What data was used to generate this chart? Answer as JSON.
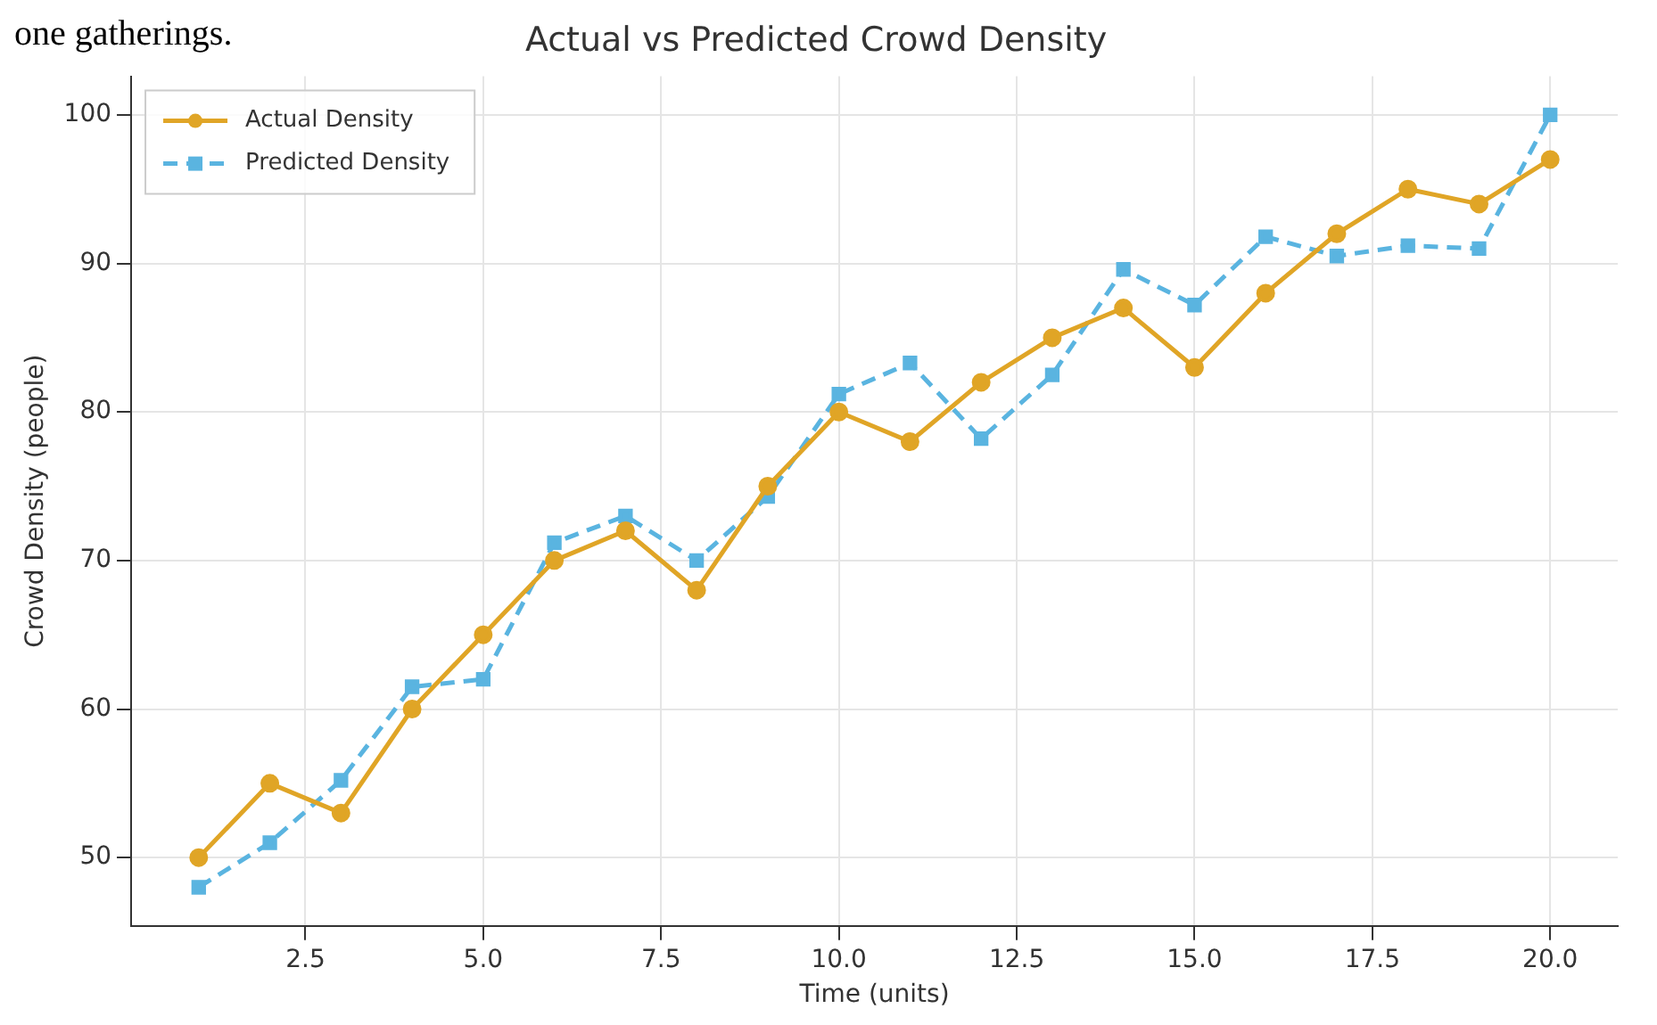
{
  "chart_data": {
    "type": "line",
    "title": "Actual vs Predicted Crowd Density",
    "xlabel": "Time (units)",
    "ylabel": "Crowd Density (people)",
    "annotations": [
      "one gatherings."
    ],
    "x": [
      1,
      2,
      3,
      4,
      5,
      6,
      7,
      8,
      9,
      10,
      11,
      12,
      13,
      14,
      15,
      16,
      17,
      18,
      19,
      20
    ],
    "series": [
      {
        "name": "Actual Density",
        "color": "#e0a526",
        "marker": "circle",
        "line_style": "solid",
        "values": [
          50,
          55,
          53,
          60,
          65,
          70,
          72,
          68,
          75,
          80,
          78,
          82,
          85,
          87,
          83,
          88,
          92,
          95,
          94,
          97
        ]
      },
      {
        "name": "Predicted Density",
        "color": "#5ab4e0",
        "marker": "square",
        "line_style": "dashed",
        "values": [
          48,
          51,
          55.2,
          61.5,
          62,
          71.2,
          73,
          70,
          74.3,
          81.2,
          83.3,
          78.2,
          82.5,
          89.6,
          87.2,
          91.8,
          90.5,
          91.2,
          91,
          100
        ]
      }
    ],
    "xlim": [
      0.05,
      20.95
    ],
    "xticks": [
      {
        "value": 2.5,
        "label": "2.5"
      },
      {
        "value": 5,
        "label": "5.0"
      },
      {
        "value": 7.5,
        "label": "7.5"
      },
      {
        "value": 10,
        "label": "10.0"
      },
      {
        "value": 12.5,
        "label": "12.5"
      },
      {
        "value": 15,
        "label": "15.0"
      },
      {
        "value": 17.5,
        "label": "17.5"
      },
      {
        "value": 20,
        "label": "20.0"
      }
    ],
    "ylim": [
      45.4,
      102.6
    ],
    "yticks": [
      50,
      60,
      70,
      80,
      90,
      100
    ],
    "grid": true,
    "legend": "top left"
  }
}
